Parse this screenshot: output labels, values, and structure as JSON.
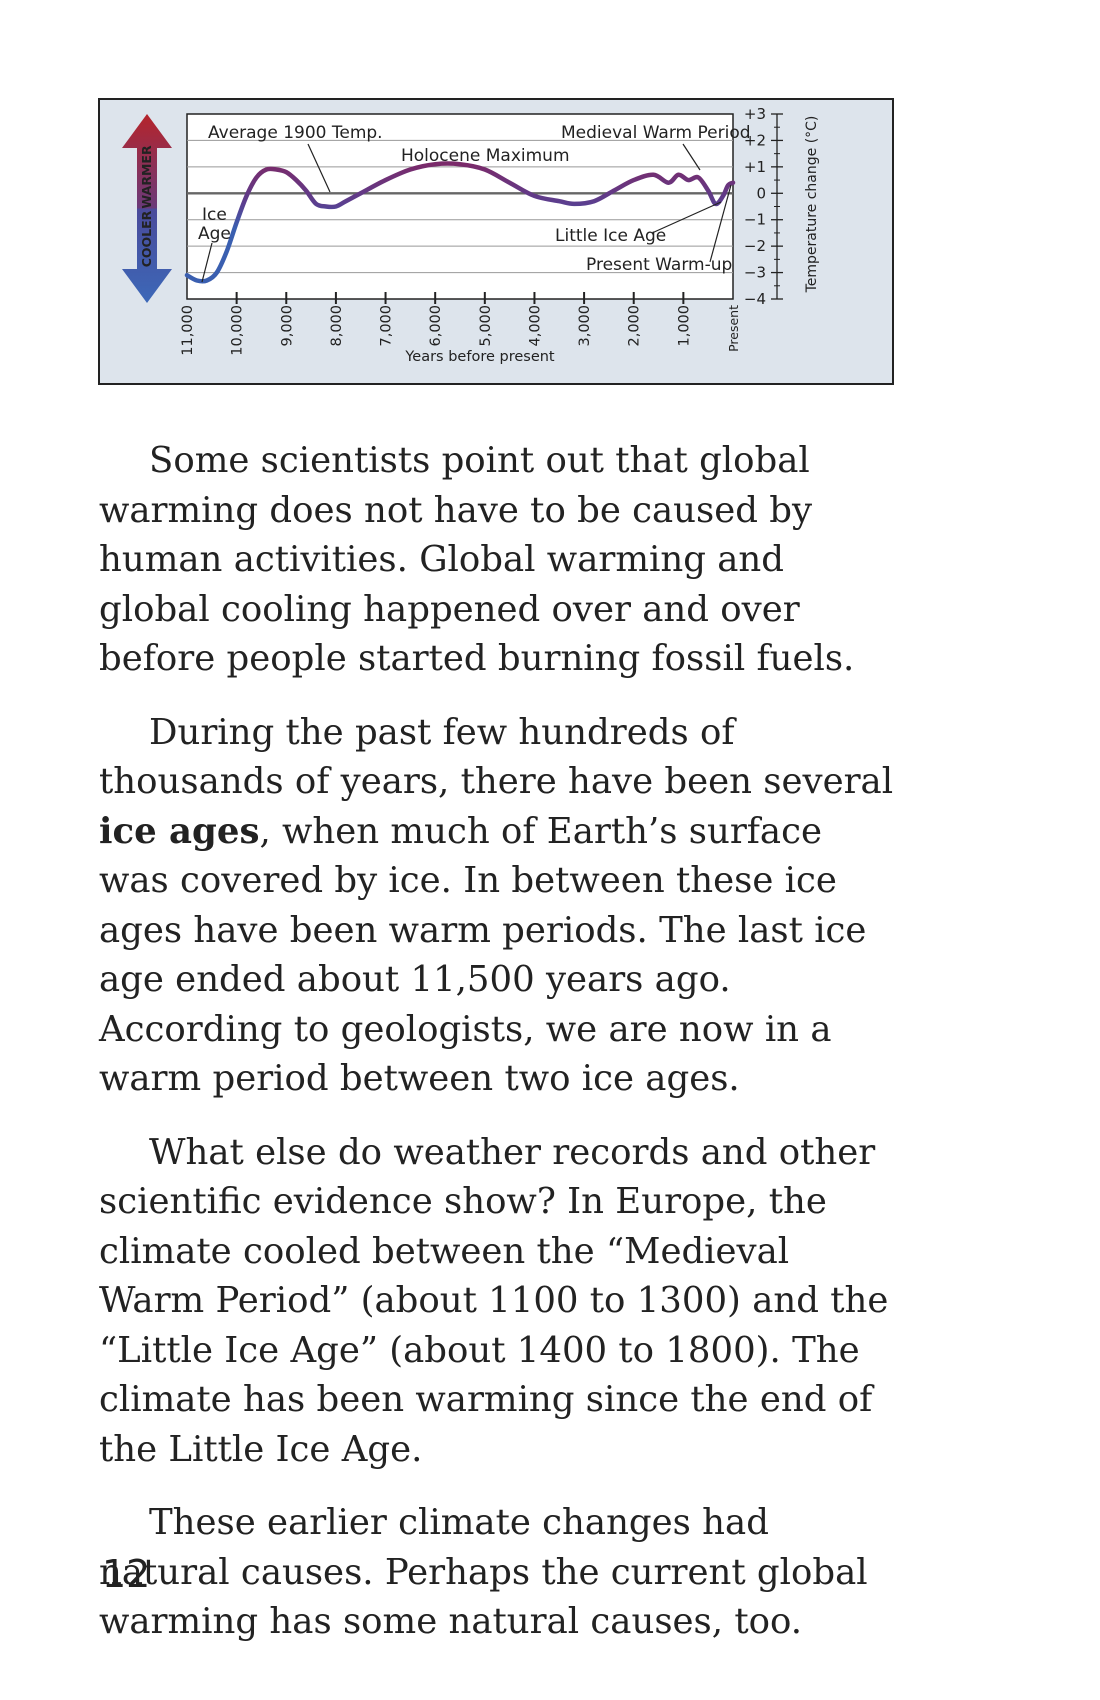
{
  "chart_data": {
    "type": "line",
    "title": "",
    "xlabel": "Years before present",
    "ylabel": "Temperature change (°C)",
    "x_tick_labels": [
      "11,000",
      "10,000",
      "9,000",
      "8,000",
      "7,000",
      "6,000",
      "5,000",
      "4,000",
      "3,000",
      "2,000",
      "1,000",
      "Present"
    ],
    "y_tick_labels": [
      "+3",
      "+2",
      "+1",
      "0",
      "−1",
      "−2",
      "−3",
      "−4"
    ],
    "xlim": [
      11000,
      0
    ],
    "ylim": [
      -4,
      3
    ],
    "reference_line_label": "Average 1900 Temp.",
    "scale_arrow": {
      "warmer_label": "WARMER",
      "cooler_label": "COOLER",
      "warm_color": "#b5242b",
      "cool_color": "#3c68b8"
    },
    "series": [
      {
        "x": [
          11000,
          10800,
          10600,
          10400,
          10200,
          10000,
          9800,
          9600,
          9400,
          9200,
          9000,
          8800,
          8600,
          8400,
          8200,
          8000,
          7800,
          7500,
          7000,
          6500,
          6000,
          5500,
          5000,
          4500,
          4000,
          3500,
          3200,
          2800,
          2400,
          2000,
          1600,
          1300,
          1100,
          900,
          700,
          500,
          350,
          200,
          100,
          0
        ],
        "y": [
          -3.1,
          -3.3,
          -3.3,
          -3.0,
          -2.2,
          -1.1,
          -0.1,
          0.6,
          0.9,
          0.9,
          0.8,
          0.5,
          0.1,
          -0.4,
          -0.5,
          -0.5,
          -0.3,
          0.0,
          0.5,
          0.9,
          1.1,
          1.1,
          0.9,
          0.4,
          -0.1,
          -0.3,
          -0.4,
          -0.3,
          0.1,
          0.5,
          0.7,
          0.4,
          0.7,
          0.5,
          0.6,
          0.1,
          -0.4,
          -0.1,
          0.3,
          0.4
        ]
      }
    ],
    "annotations": [
      {
        "text": "Average 1900 Temp.",
        "x": 8300,
        "y": 0
      },
      {
        "text": "Holocene Maximum",
        "x": 5500,
        "y": 1.1
      },
      {
        "text": "Medieval Warm Period",
        "x": 700,
        "y": 0.6
      },
      {
        "text": "Ice",
        "x": 10700,
        "y": -3.3
      },
      {
        "text": "Age",
        "x": 10700,
        "y": -3.3
      },
      {
        "text": "Little Ice Age",
        "x": 330,
        "y": -0.4
      },
      {
        "text": "Present Warm-up",
        "x": 120,
        "y": 0.2
      }
    ],
    "curve_colors": {
      "warm": "#7a2a6a",
      "cool": "#3a5fb0"
    }
  },
  "paragraphs": [
    {
      "text": "Some scientists point out that global warming does not have to be caused by human activities. Global warming and global cooling happened over and over before people started burning fossil fuels."
    },
    {
      "before": "During the past few hundreds of thousands of years, there have been several ",
      "bold": "ice ages",
      "after": ", when much of Earth’s surface was covered by ice. In between these ice ages have been warm periods. The last ice age ended about 11,500 years ago. According to geologists, we are now in a warm period between two ice ages."
    },
    {
      "text": "What else do weather records and other scientific evidence show? In Europe, the climate cooled between the “Medieval Warm Period” (about 1100 to 1300) and the “Little Ice Age” (about 1400 to 1800). The climate has been warming since the end of the Little Ice Age."
    },
    {
      "text": "These earlier climate changes had natural causes. Perhaps the current global warming has some natural causes, too."
    }
  ],
  "page_number": "12"
}
